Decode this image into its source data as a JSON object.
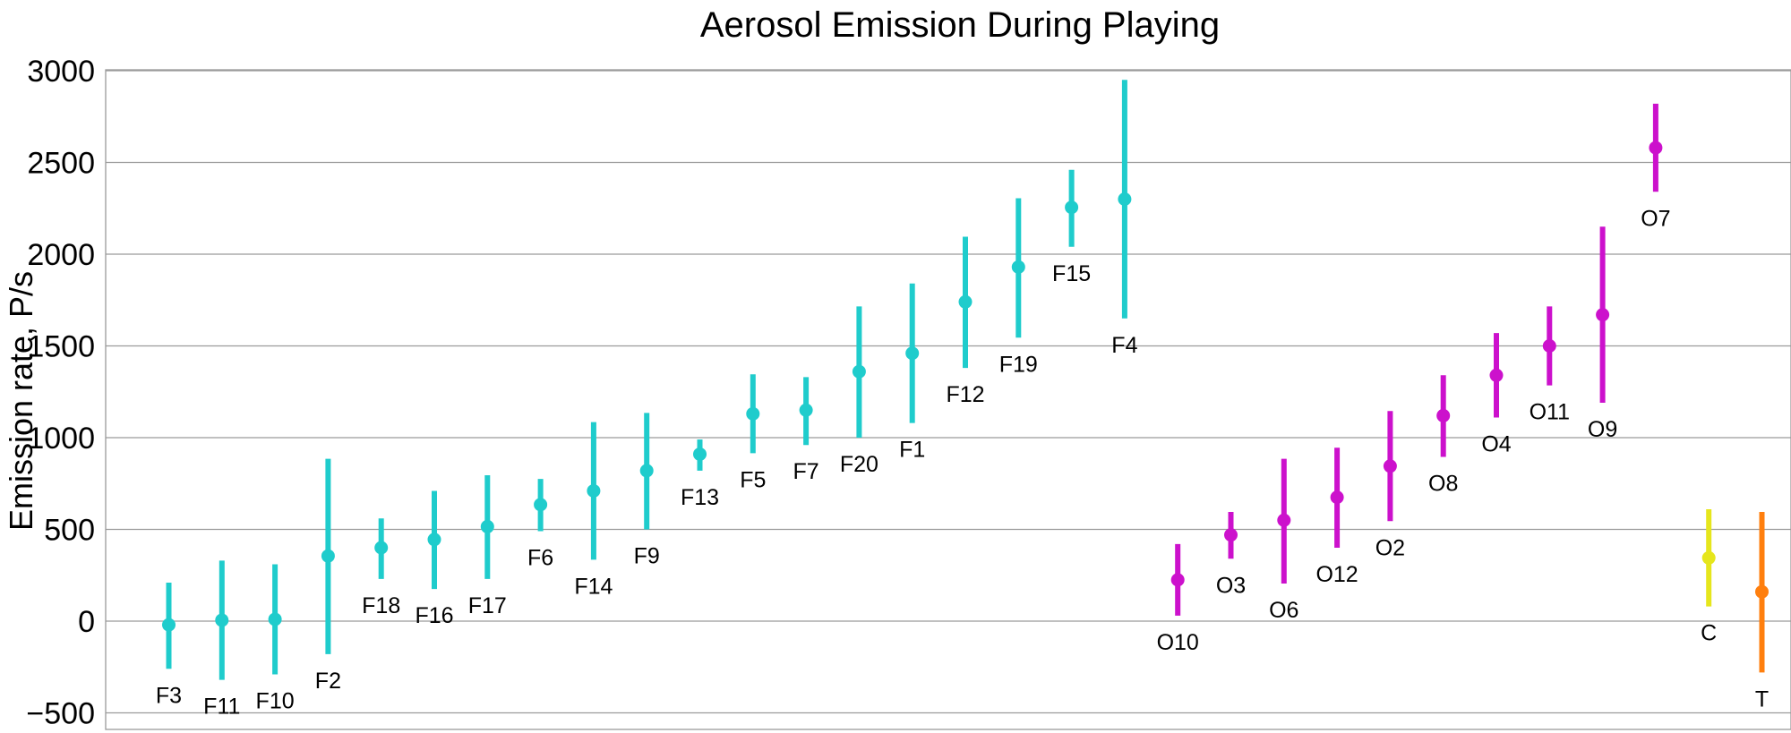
{
  "chart_data": {
    "type": "scatter",
    "title": "Aerosol Emission During Playing",
    "ylabel": "Emission rate,  P/s",
    "xlabel": "",
    "ylim": [
      -600,
      3000
    ],
    "yticks": [
      -500,
      0,
      500,
      1000,
      1500,
      2000,
      2500,
      3000
    ],
    "ytick_labels": [
      "−500",
      "0",
      "500",
      "1000",
      "1500",
      "2000",
      "2500",
      "3000"
    ],
    "grid": "horizontal",
    "colors": {
      "F": "#1fcccc",
      "O": "#cc11cc",
      "C": "#e6e61c",
      "T": "#ff7f0e"
    },
    "series": [
      {
        "group": "F",
        "points": [
          {
            "label": "F3",
            "value": -20,
            "low": -260,
            "high": 210
          },
          {
            "label": "F11",
            "value": 5,
            "low": -320,
            "high": 330
          },
          {
            "label": "F10",
            "value": 10,
            "low": -290,
            "high": 310
          },
          {
            "label": "F2",
            "value": 355,
            "low": -180,
            "high": 885
          },
          {
            "label": "F18",
            "value": 400,
            "low": 230,
            "high": 560
          },
          {
            "label": "F16",
            "value": 445,
            "low": 175,
            "high": 710
          },
          {
            "label": "F17",
            "value": 515,
            "low": 230,
            "high": 795
          },
          {
            "label": "F6",
            "value": 635,
            "low": 490,
            "high": 775
          },
          {
            "label": "F14",
            "value": 710,
            "low": 335,
            "high": 1085
          },
          {
            "label": "F9",
            "value": 820,
            "low": 500,
            "high": 1135
          },
          {
            "label": "F13",
            "value": 910,
            "low": 820,
            "high": 990
          },
          {
            "label": "F5",
            "value": 1130,
            "low": 915,
            "high": 1345
          },
          {
            "label": "F7",
            "value": 1150,
            "low": 960,
            "high": 1330
          },
          {
            "label": "F20",
            "value": 1360,
            "low": 1000,
            "high": 1715
          },
          {
            "label": "F1",
            "value": 1460,
            "low": 1080,
            "high": 1840
          },
          {
            "label": "F12",
            "value": 1740,
            "low": 1380,
            "high": 2095
          },
          {
            "label": "F19",
            "value": 1930,
            "low": 1545,
            "high": 2305
          },
          {
            "label": "F15",
            "value": 2255,
            "low": 2040,
            "high": 2460
          },
          {
            "label": "F4",
            "value": 2300,
            "low": 1650,
            "high": 2950
          }
        ]
      },
      {
        "group": "O",
        "points": [
          {
            "label": "O10",
            "value": 225,
            "low": 30,
            "high": 420
          },
          {
            "label": "O3",
            "value": 470,
            "low": 340,
            "high": 595
          },
          {
            "label": "O6",
            "value": 550,
            "low": 205,
            "high": 885
          },
          {
            "label": "O12",
            "value": 675,
            "low": 400,
            "high": 945
          },
          {
            "label": "O2",
            "value": 845,
            "low": 545,
            "high": 1145
          },
          {
            "label": "O8",
            "value": 1120,
            "low": 895,
            "high": 1340
          },
          {
            "label": "O4",
            "value": 1340,
            "low": 1110,
            "high": 1570
          },
          {
            "label": "O11",
            "value": 1500,
            "low": 1285,
            "high": 1715
          },
          {
            "label": "O9",
            "value": 1670,
            "low": 1190,
            "high": 2150
          },
          {
            "label": "O7",
            "value": 2580,
            "low": 2340,
            "high": 2820
          }
        ]
      },
      {
        "group": "C",
        "points": [
          {
            "label": "C",
            "value": 345,
            "low": 80,
            "high": 610
          }
        ]
      },
      {
        "group": "T",
        "points": [
          {
            "label": "T",
            "value": 160,
            "low": -280,
            "high": 595
          }
        ]
      }
    ]
  }
}
